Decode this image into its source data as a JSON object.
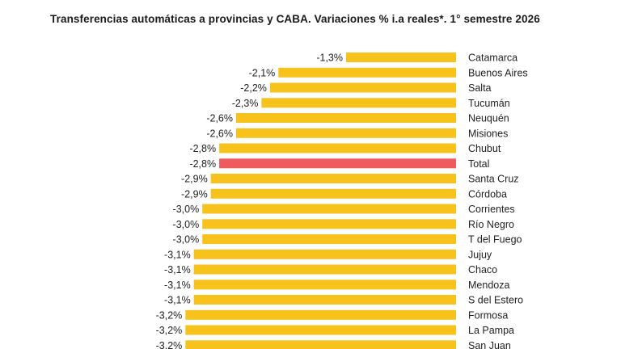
{
  "chart_data": {
    "type": "bar",
    "orientation": "horizontal",
    "title": "Transferencias automáticas a provincias y CABA. Variaciones % i.a reales*. 1° semestre 2026",
    "value_suffix": "%",
    "decimal_separator": ",",
    "categories": [
      "Catamarca",
      "Buenos Aires",
      "Salta",
      "Tucumán",
      "Neuquén",
      "Misiones",
      "Chubut",
      "Total",
      "Santa Cruz",
      "Córdoba",
      "Corrientes",
      "Río Negro",
      "T del Fuego",
      "Jujuy",
      "Chaco",
      "Mendoza",
      "S del Estero",
      "Formosa",
      "La Pampa",
      "San Juan"
    ],
    "values": [
      -1.3,
      -2.1,
      -2.2,
      -2.3,
      -2.6,
      -2.6,
      -2.8,
      -2.8,
      -2.9,
      -2.9,
      -3.0,
      -3.0,
      -3.0,
      -3.1,
      -3.1,
      -3.1,
      -3.1,
      -3.2,
      -3.2,
      -3.2
    ],
    "highlight_category": "Total",
    "colors": {
      "bar": "#F7C21B",
      "highlight": "#EF5A5F"
    },
    "grid": false,
    "legend": "none"
  }
}
